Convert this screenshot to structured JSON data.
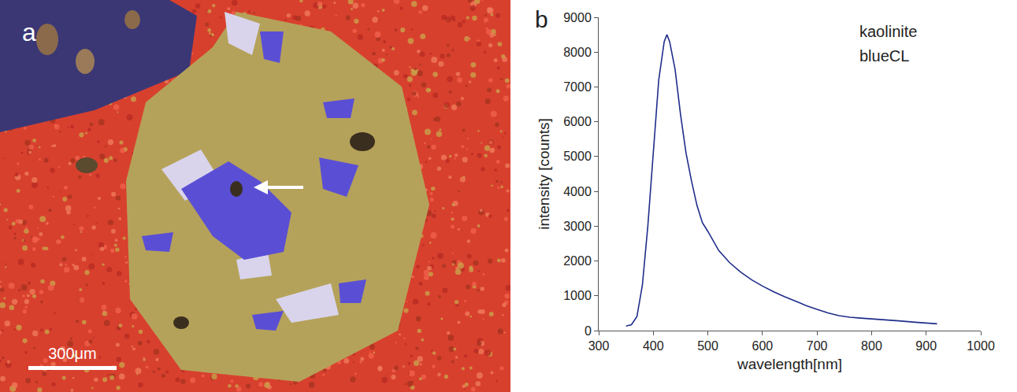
{
  "image_panel": {
    "label": "a",
    "scale_bar": "300μm"
  },
  "chart_data": {
    "type": "line",
    "panel_label": "b",
    "x_label": "wavelength[nm]",
    "y_label": "intensity [counts]",
    "annotations": [
      "kaolinite",
      "blueCL"
    ],
    "color": "#1f2d8a",
    "grid": false,
    "xlim": [
      300,
      1000
    ],
    "xticks": [
      300,
      400,
      500,
      600,
      700,
      800,
      900,
      1000
    ],
    "ylim": [
      0,
      9000
    ],
    "yticks": [
      0,
      1000,
      2000,
      3000,
      4000,
      5000,
      6000,
      7000,
      8000,
      9000
    ],
    "x": [
      350,
      360,
      370,
      380,
      390,
      400,
      410,
      420,
      425,
      430,
      440,
      450,
      460,
      470,
      480,
      490,
      500,
      520,
      540,
      560,
      580,
      600,
      620,
      640,
      660,
      680,
      700,
      720,
      740,
      760,
      780,
      800,
      820,
      850,
      880,
      900,
      920
    ],
    "values": [
      130,
      170,
      400,
      1300,
      3000,
      5200,
      7200,
      8300,
      8500,
      8300,
      7500,
      6200,
      5100,
      4300,
      3600,
      3100,
      2850,
      2300,
      1950,
      1680,
      1460,
      1280,
      1120,
      980,
      850,
      720,
      610,
      510,
      430,
      385,
      360,
      340,
      320,
      280,
      240,
      210,
      195
    ]
  }
}
